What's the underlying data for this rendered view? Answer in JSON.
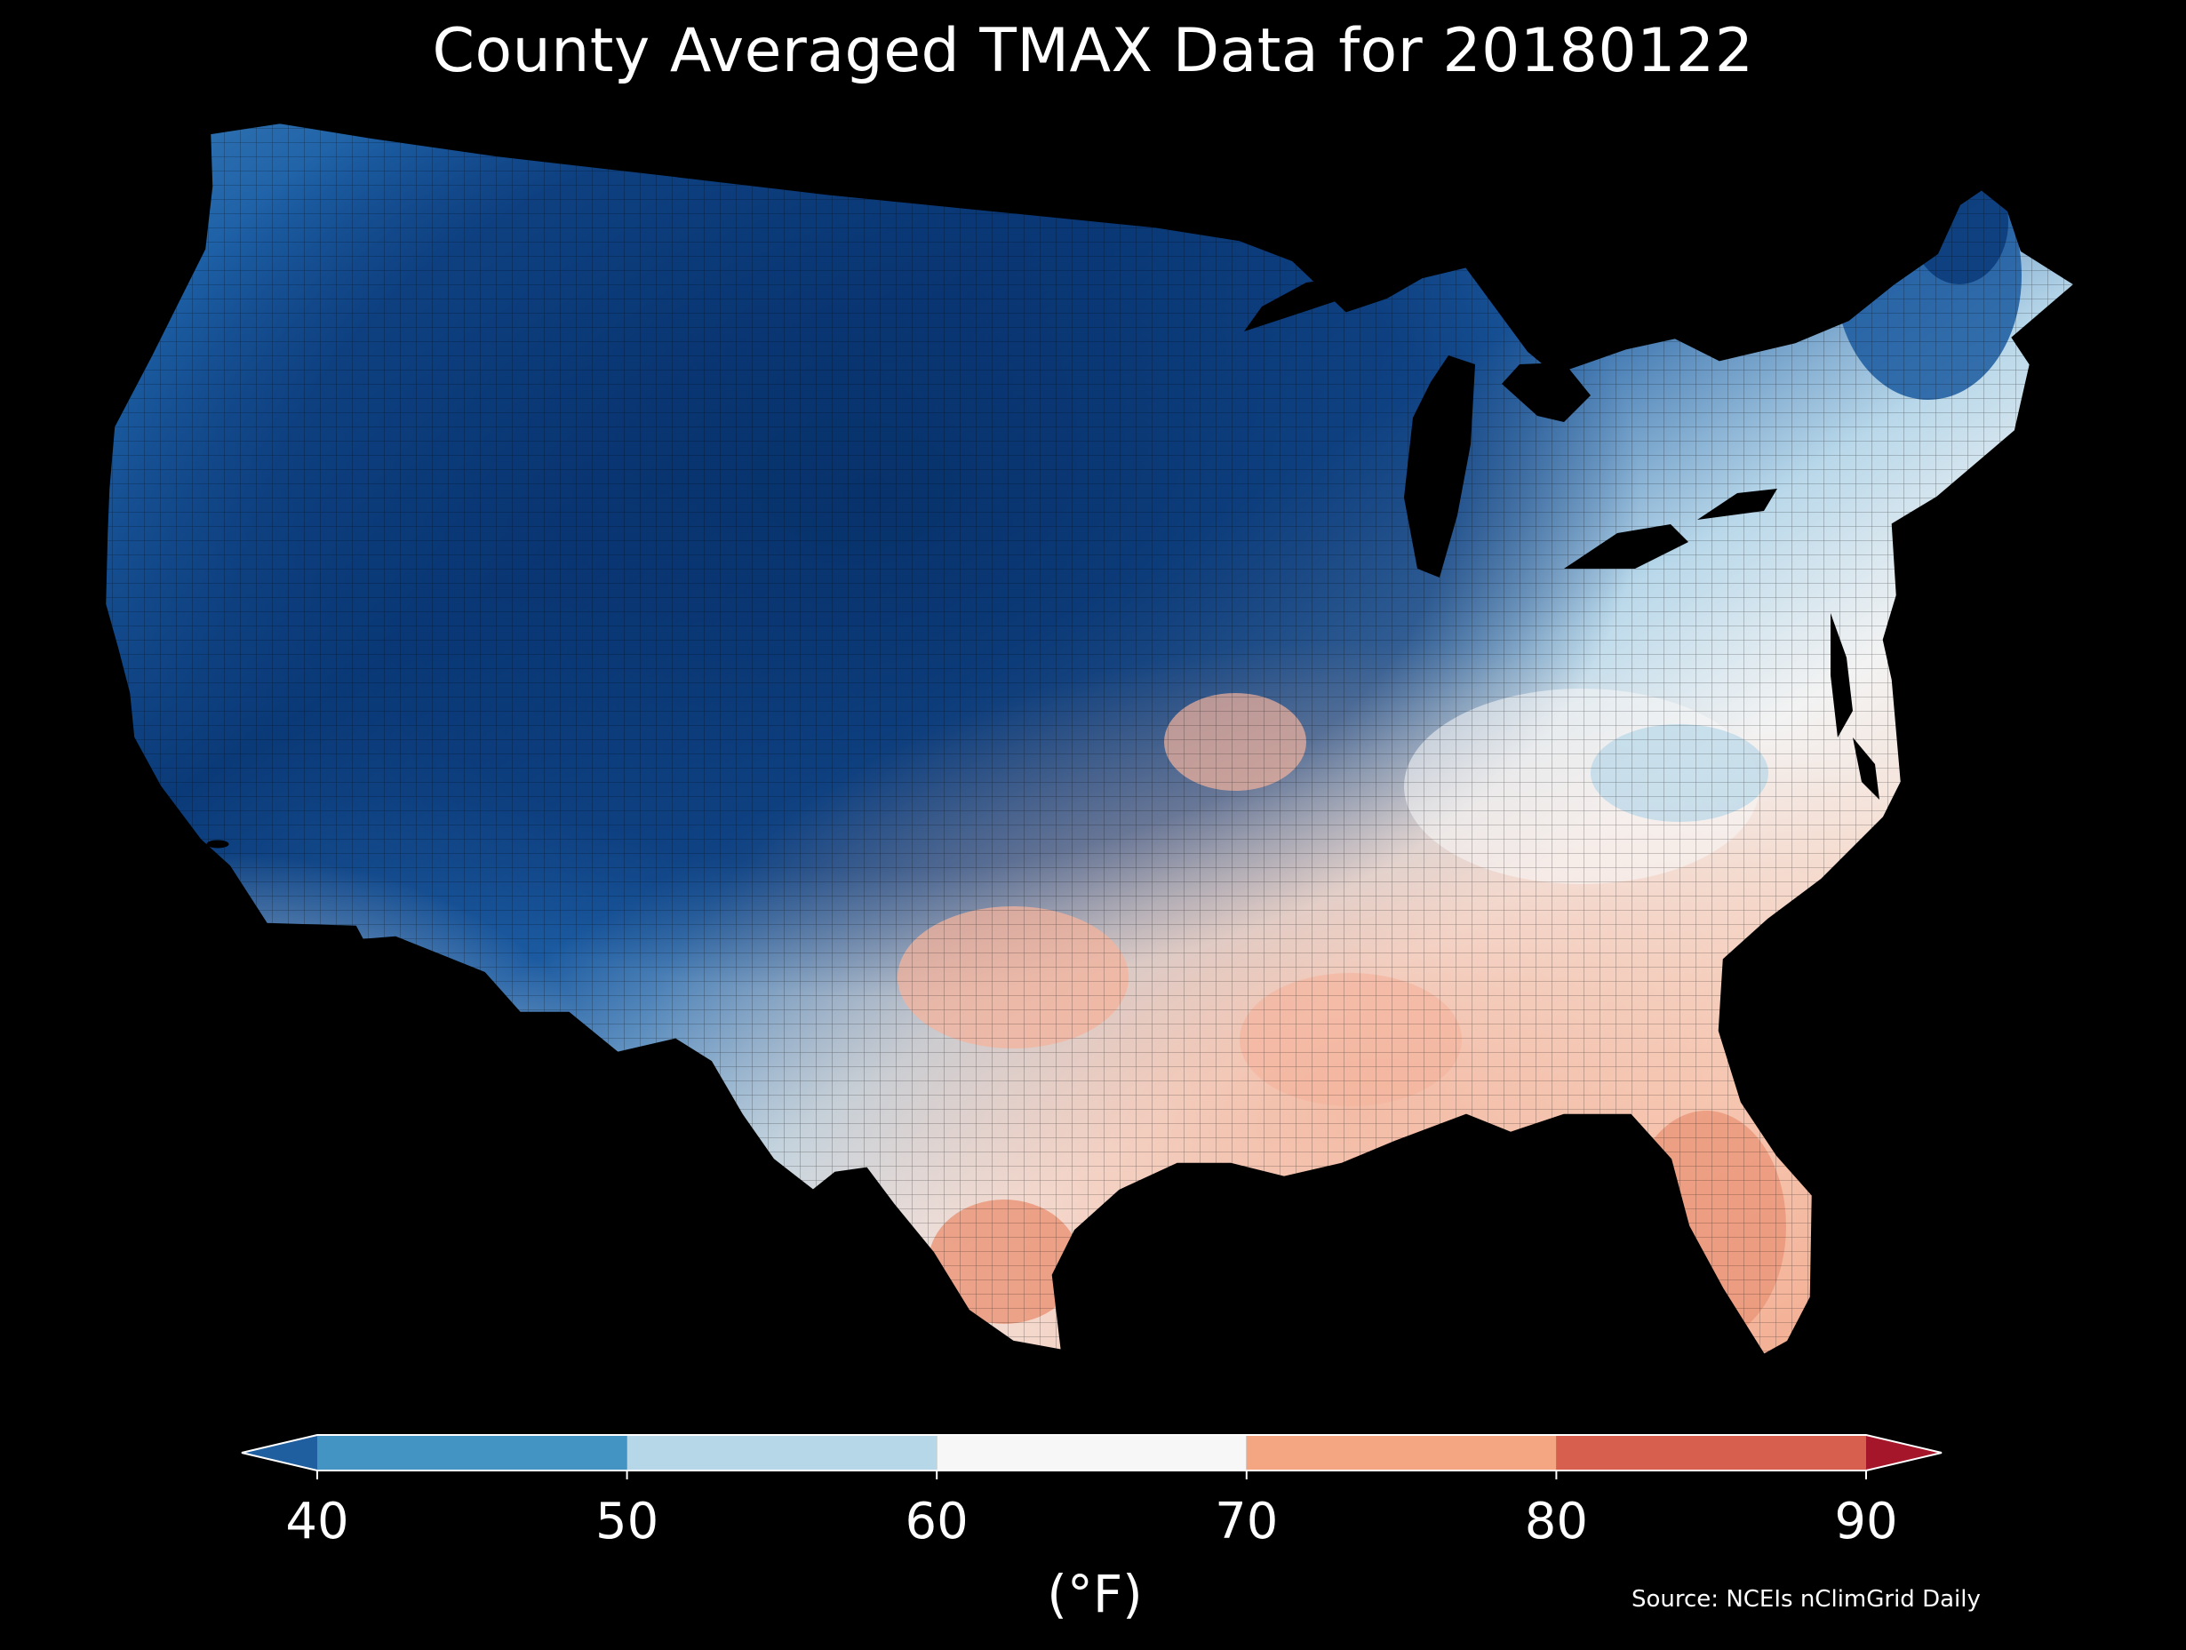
{
  "title": "County Averaged TMAX Data for 20180122",
  "colorbar": {
    "ticks": [
      "40",
      "50",
      "60",
      "70",
      "80",
      "90"
    ],
    "unit": "(°F)",
    "bins": [
      {
        "from": null,
        "to": 40,
        "color": "#1f5fa0"
      },
      {
        "from": 40,
        "to": 50,
        "color": "#4393c3"
      },
      {
        "from": 50,
        "to": 60,
        "color": "#b6d7e8"
      },
      {
        "from": 60,
        "to": 70,
        "color": "#f7f7f7"
      },
      {
        "from": 70,
        "to": 80,
        "color": "#f4a582"
      },
      {
        "from": 80,
        "to": 90,
        "color": "#d6604d"
      },
      {
        "from": 90,
        "to": null,
        "color": "#a5162a"
      }
    ]
  },
  "source": "Source: NCEIs nClimGrid Daily",
  "map": {
    "region": "Contiguous United States counties",
    "colors": {
      "background": "#000000",
      "coldest": "#08306b",
      "cold": "#2166ac",
      "cool": "#4393c3",
      "mild_cool": "#b6d7e8",
      "neutral": "#f7f7f7",
      "warm": "#fddbc7",
      "warmer": "#f4a582",
      "hottest": "#e08060",
      "borders": "#000000"
    }
  }
}
